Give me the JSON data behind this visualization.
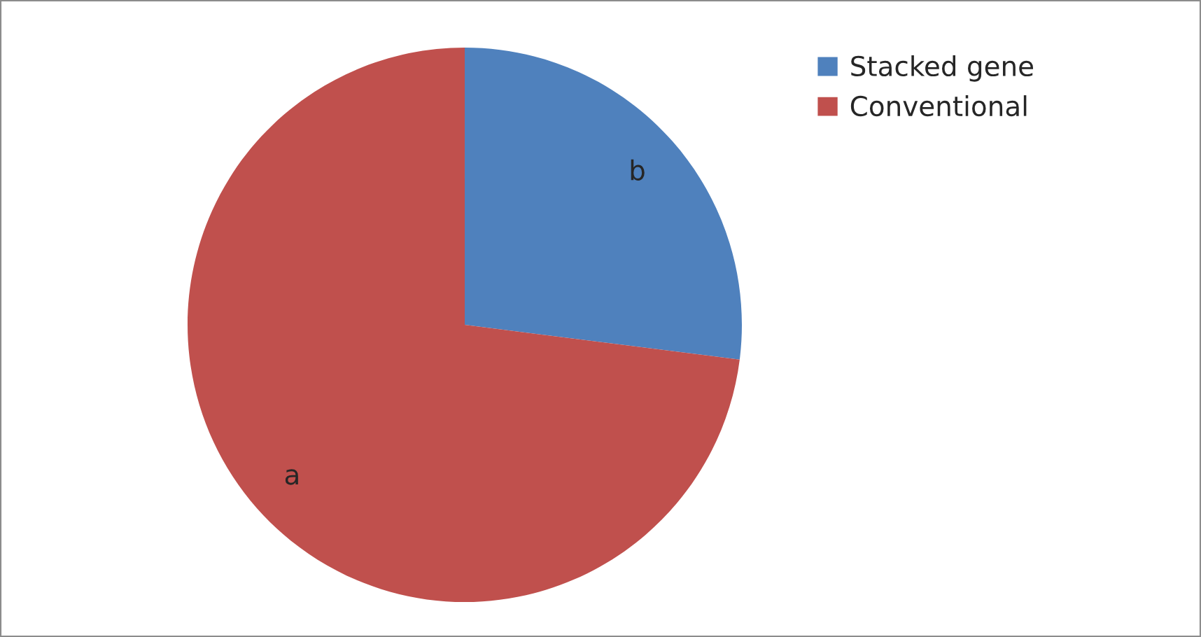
{
  "chart_data": {
    "type": "pie",
    "categories": [
      "Stacked gene",
      "Conventional"
    ],
    "values": [
      27,
      73
    ],
    "colors": [
      "#4f81bd",
      "#c0504d"
    ],
    "annotations": [
      "b",
      "a"
    ],
    "legend": "top right"
  }
}
